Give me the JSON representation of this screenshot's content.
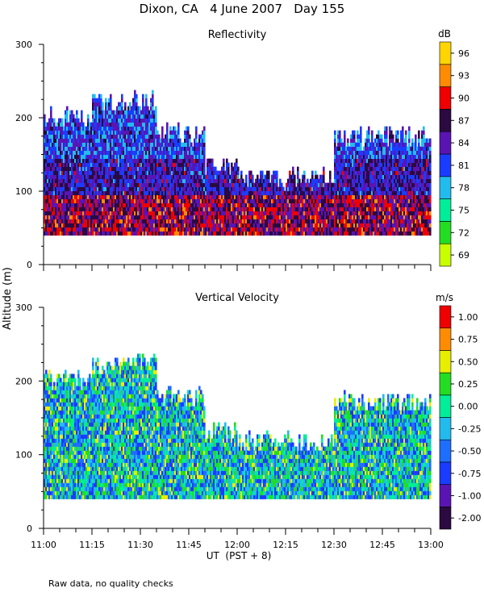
{
  "figure_title": "Dixon, CA   4 June 2007   Day 155",
  "footnote": "Raw data, no quality checks",
  "chart_data": [
    {
      "type": "heatmap",
      "title": "Reflectivity",
      "ylabel": "Altitude (m)",
      "xlabel": "UT  (PST + 8)",
      "xlim": [
        "11:00",
        "13:00"
      ],
      "ylim": [
        0,
        300
      ],
      "x_ticks": [
        "11:00",
        "11:15",
        "11:30",
        "11:45",
        "12:00",
        "12:15",
        "12:30",
        "12:45",
        "13:00"
      ],
      "y_ticks": [
        0,
        100,
        200,
        300
      ],
      "colorbar_unit": "dB",
      "colorbar_levels": [
        69,
        72,
        75,
        78,
        81,
        84,
        87,
        90,
        93,
        96
      ],
      "colorbar_colors": [
        "#c8ff00",
        "#22dd22",
        "#00ee99",
        "#22bbee",
        "#1a3cff",
        "#5a14b4",
        "#2a0a40",
        "#ee0000",
        "#ff8c00",
        "#ffd500"
      ],
      "data_bottom_altitude": 40,
      "echo_top_segments": [
        {
          "x": [
            "11:00",
            "11:15"
          ],
          "top": 200
        },
        {
          "x": [
            "11:15",
            "11:35"
          ],
          "top": 220
        },
        {
          "x": [
            "11:35",
            "11:50"
          ],
          "top": 175
        },
        {
          "x": [
            "11:50",
            "12:00"
          ],
          "top": 130
        },
        {
          "x": [
            "12:00",
            "12:30"
          ],
          "top": 115
        },
        {
          "x": [
            "12:30",
            "13:00"
          ],
          "top": 170
        }
      ]
    },
    {
      "type": "heatmap",
      "title": "Vertical Velocity",
      "ylabel": "Altitude (m)",
      "xlabel": "UT  (PST + 8)",
      "xlim": [
        "11:00",
        "13:00"
      ],
      "ylim": [
        0,
        300
      ],
      "x_ticks": [
        "11:00",
        "11:15",
        "11:30",
        "11:45",
        "12:00",
        "12:15",
        "12:30",
        "12:45",
        "13:00"
      ],
      "y_ticks": [
        0,
        100,
        200,
        300
      ],
      "colorbar_unit": "m/s",
      "colorbar_levels": [
        "-2.00",
        "-1.00",
        "-0.75",
        "-0.50",
        "-0.25",
        "0.00",
        "0.25",
        "0.50",
        "0.75",
        "1.00"
      ],
      "colorbar_colors": [
        "#2a0a40",
        "#5a14b4",
        "#1a3cff",
        "#1e6eff",
        "#22bbee",
        "#00ee99",
        "#22dd22",
        "#e8ee00",
        "#ff8c00",
        "#ee0000"
      ],
      "data_bottom_altitude": 40,
      "echo_top_segments": [
        {
          "x": [
            "11:00",
            "11:15"
          ],
          "top": 200
        },
        {
          "x": [
            "11:15",
            "11:35"
          ],
          "top": 220
        },
        {
          "x": [
            "11:35",
            "11:50"
          ],
          "top": 175
        },
        {
          "x": [
            "11:50",
            "12:00"
          ],
          "top": 130
        },
        {
          "x": [
            "12:00",
            "12:30"
          ],
          "top": 115
        },
        {
          "x": [
            "12:30",
            "13:00"
          ],
          "top": 170
        }
      ]
    }
  ]
}
